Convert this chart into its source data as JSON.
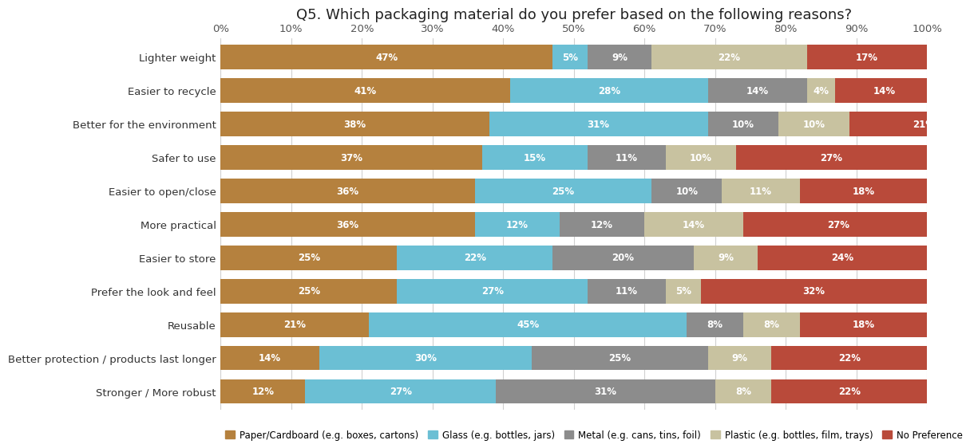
{
  "title": "Q5. Which packaging material do you prefer based on the following reasons?",
  "categories": [
    "Lighter weight",
    "Easier to recycle",
    "Better for the environment",
    "Safer to use",
    "Easier to open/close",
    "More practical",
    "Easier to store",
    "Prefer the look and feel",
    "Reusable",
    "Better protection / products last longer",
    "Stronger / More robust"
  ],
  "series_labels": [
    "Paper/Cardboard (e.g. boxes, cartons)",
    "Glass (e.g. bottles, jars)",
    "Metal (e.g. cans, tins, foil)",
    "Plastic (e.g. bottles, film, trays)",
    "No Preference"
  ],
  "colors": [
    "#b5813e",
    "#6bbfd4",
    "#8c8c8c",
    "#c8c2a0",
    "#b94a3a"
  ],
  "data": {
    "Paper/Cardboard": [
      47,
      41,
      38,
      37,
      36,
      36,
      25,
      25,
      21,
      14,
      12
    ],
    "Glass": [
      5,
      28,
      31,
      15,
      25,
      12,
      22,
      27,
      45,
      30,
      27
    ],
    "Metal": [
      9,
      14,
      10,
      11,
      10,
      12,
      20,
      11,
      8,
      25,
      31
    ],
    "Plastic": [
      22,
      4,
      10,
      10,
      11,
      14,
      9,
      5,
      8,
      9,
      8
    ],
    "No Preference": [
      17,
      14,
      21,
      27,
      18,
      27,
      24,
      32,
      18,
      22,
      22
    ]
  },
  "xlim": [
    0,
    100
  ],
  "xticks": [
    0,
    10,
    20,
    30,
    40,
    50,
    60,
    70,
    80,
    90,
    100
  ],
  "xtick_labels": [
    "0%",
    "10%",
    "20%",
    "30%",
    "40%",
    "50%",
    "60%",
    "70%",
    "80%",
    "90%",
    "100%"
  ],
  "bar_height": 0.72,
  "label_fontsize": 8.5,
  "tick_fontsize": 9.5,
  "title_fontsize": 13
}
